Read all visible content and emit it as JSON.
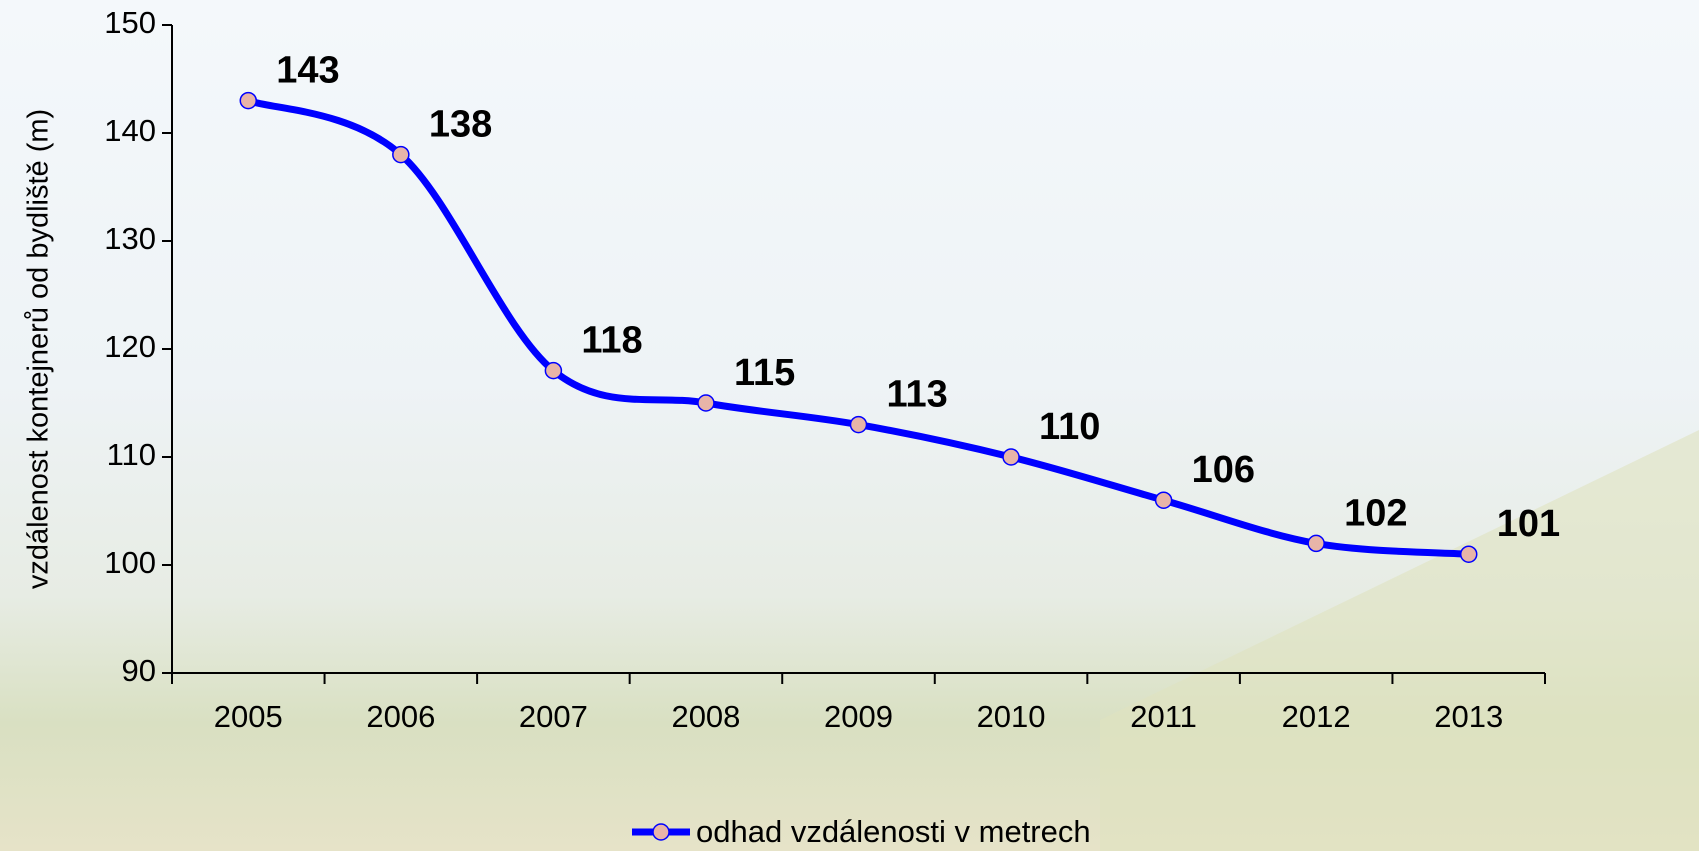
{
  "chart_data": {
    "type": "line",
    "y_label": "vzdálenost kontejnerů od bydliště (m)",
    "categories": [
      "2005",
      "2006",
      "2007",
      "2008",
      "2009",
      "2010",
      "2011",
      "2012",
      "2013"
    ],
    "series": [
      {
        "name": "odhad vzdálenosti v metrech",
        "color": "#0000ff",
        "marker_color": "#e8b4a8",
        "values": [
          143,
          138,
          118,
          115,
          113,
          110,
          106,
          102,
          101
        ]
      }
    ],
    "ylim": [
      90,
      150
    ],
    "yticks": [
      90,
      100,
      110,
      120,
      130,
      140,
      150
    ],
    "smooth": true,
    "legend": "bottom"
  }
}
